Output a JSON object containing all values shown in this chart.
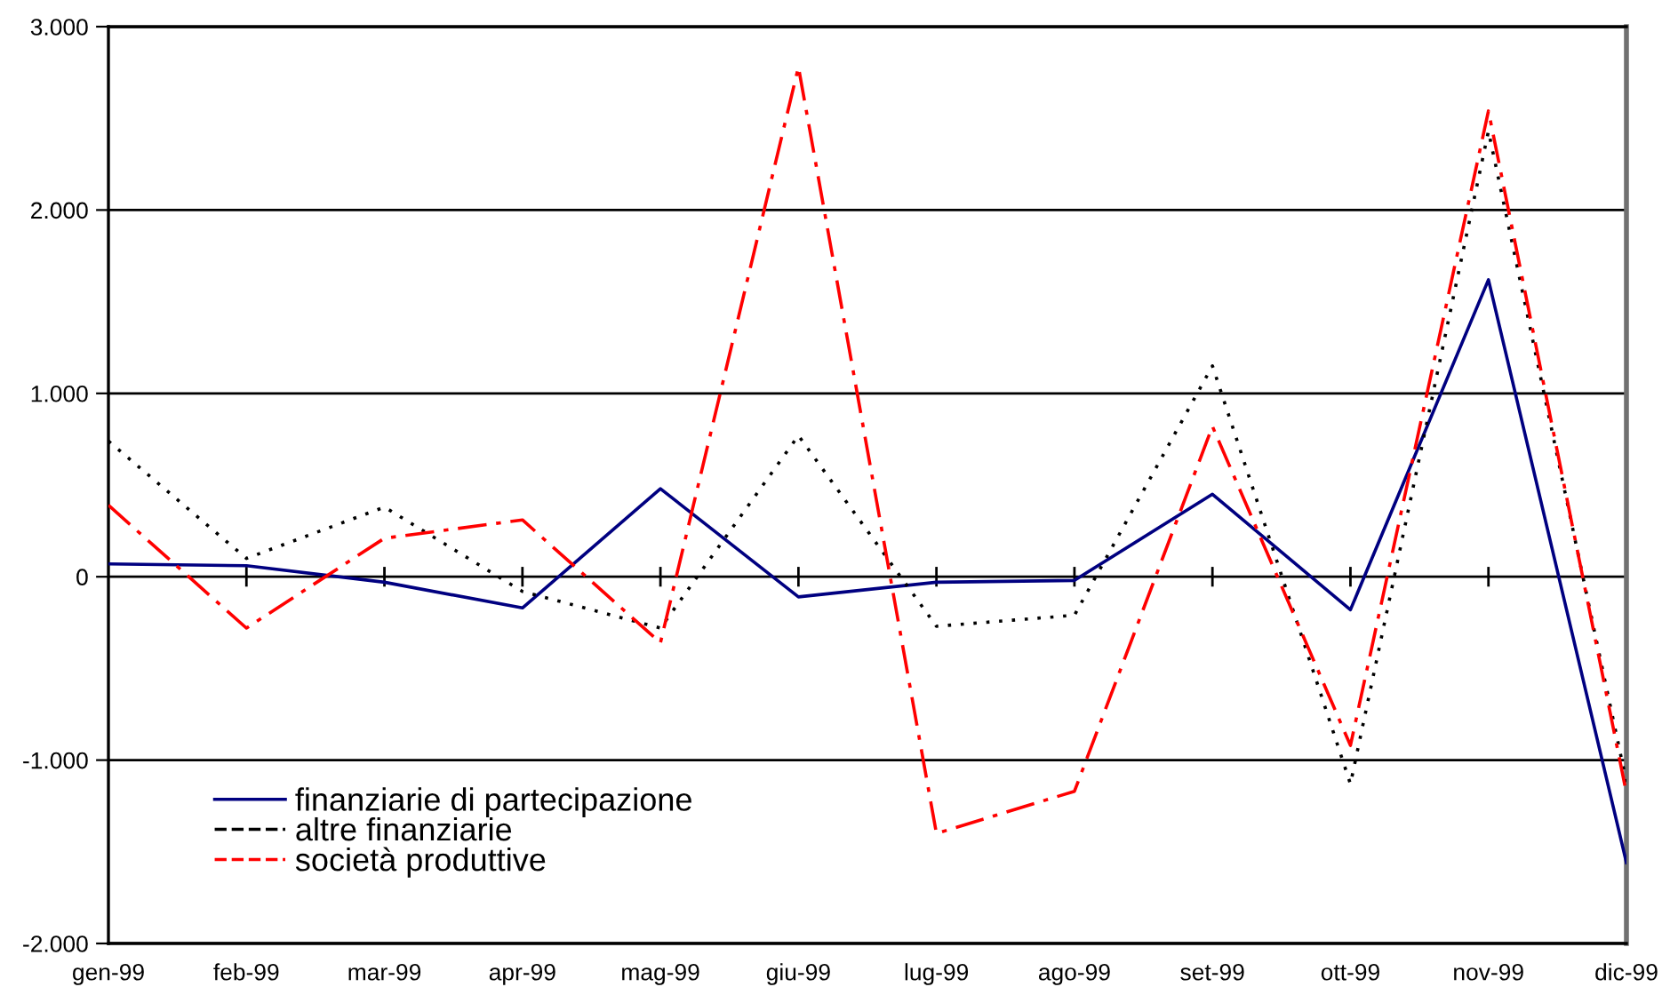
{
  "chart_data": {
    "type": "line",
    "categories": [
      "gen-99",
      "feb-99",
      "mar-99",
      "apr-99",
      "mag-99",
      "giu-99",
      "lug-99",
      "ago-99",
      "set-99",
      "ott-99",
      "nov-99",
      "dic-99"
    ],
    "series": [
      {
        "name": "finanziarie di partecipazione",
        "color": "#000080",
        "line_style": "solid",
        "values": [
          70,
          60,
          -30,
          -170,
          480,
          -110,
          -30,
          -20,
          450,
          -180,
          1620,
          -1560
        ]
      },
      {
        "name": "altre finanziarie",
        "color": "#000000",
        "line_style": "dotted",
        "values": [
          740,
          100,
          380,
          -80,
          -280,
          770,
          -270,
          -210,
          1150,
          -1130,
          2430,
          -1120
        ]
      },
      {
        "name": "società produttive",
        "color": "#ff0000",
        "line_style": "dashdot",
        "values": [
          390,
          -280,
          210,
          310,
          -360,
          2780,
          -1400,
          -1170,
          820,
          -920,
          2540,
          -1180
        ]
      }
    ],
    "ylim": [
      -2000,
      3000
    ],
    "yticks": [
      {
        "value": -2000,
        "label": "-2.000"
      },
      {
        "value": -1000,
        "label": "-1.000"
      },
      0,
      {
        "value": 1000,
        "label": "1.000"
      },
      {
        "value": 2000,
        "label": "2.000"
      },
      {
        "value": 3000,
        "label": "3.000"
      }
    ],
    "grid": "y",
    "legend": "bottom left"
  }
}
